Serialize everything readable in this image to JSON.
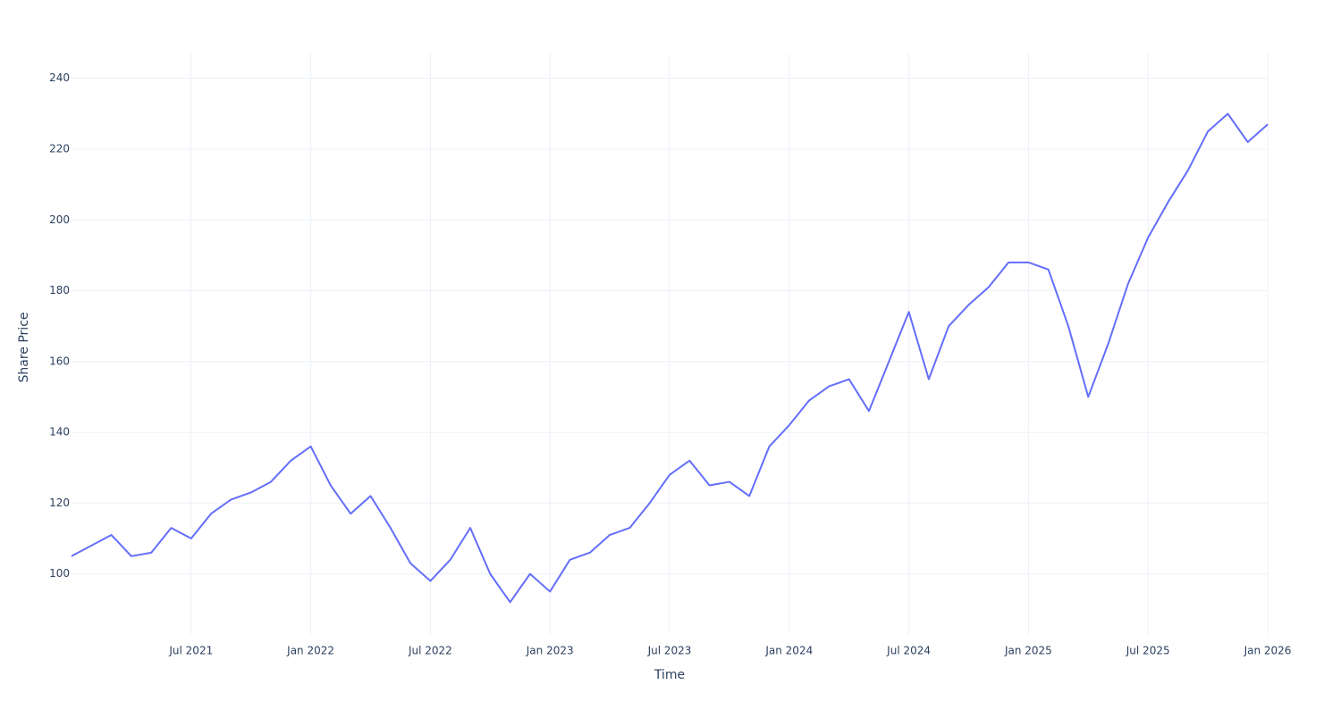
{
  "chart_data": {
    "type": "line",
    "x_label": "Time",
    "y_label": "Share Price",
    "x": [
      "2021-01",
      "2021-02",
      "2021-03",
      "2021-04",
      "2021-05",
      "2021-06",
      "2021-07",
      "2021-08",
      "2021-09",
      "2021-10",
      "2021-11",
      "2021-12",
      "2022-01",
      "2022-02",
      "2022-03",
      "2022-04",
      "2022-05",
      "2022-06",
      "2022-07",
      "2022-08",
      "2022-09",
      "2022-10",
      "2022-11",
      "2022-12",
      "2023-01",
      "2023-02",
      "2023-03",
      "2023-04",
      "2023-05",
      "2023-06",
      "2023-07",
      "2023-08",
      "2023-09",
      "2023-10",
      "2023-11",
      "2023-12",
      "2024-01",
      "2024-02",
      "2024-03",
      "2024-04",
      "2024-05",
      "2024-06",
      "2024-07",
      "2024-08",
      "2024-09",
      "2024-10",
      "2024-11",
      "2024-12",
      "2025-01",
      "2025-02",
      "2025-03",
      "2025-04",
      "2025-05",
      "2025-06",
      "2025-07",
      "2025-08",
      "2025-09",
      "2025-10",
      "2025-11",
      "2025-12",
      "2026-01"
    ],
    "series": [
      {
        "name": "Share Price",
        "color": "#636efa",
        "values": [
          105,
          108,
          111,
          105,
          106,
          113,
          110,
          117,
          121,
          123,
          126,
          132,
          136,
          125,
          117,
          122,
          113,
          103,
          98,
          104,
          113,
          100,
          92,
          100,
          95,
          104,
          106,
          111,
          113,
          120,
          128,
          132,
          125,
          126,
          122,
          136,
          142,
          149,
          153,
          155,
          146,
          160,
          174,
          155,
          170,
          176,
          181,
          188,
          188,
          186,
          170,
          150,
          165,
          182,
          195,
          205,
          214,
          225,
          230,
          222,
          227
        ]
      }
    ],
    "xlim": [
      "2021-01",
      "2026-01"
    ],
    "xticks": [
      {
        "value": "2021-07",
        "label": "Jul 2021"
      },
      {
        "value": "2022-01",
        "label": "Jan 2022"
      },
      {
        "value": "2022-07",
        "label": "Jul 2022"
      },
      {
        "value": "2023-01",
        "label": "Jan 2023"
      },
      {
        "value": "2023-07",
        "label": "Jul 2023"
      },
      {
        "value": "2024-01",
        "label": "Jan 2024"
      },
      {
        "value": "2024-07",
        "label": "Jul 2024"
      },
      {
        "value": "2025-01",
        "label": "Jan 2025"
      },
      {
        "value": "2025-07",
        "label": "Jul 2025"
      },
      {
        "value": "2026-01",
        "label": "Jan 2026"
      }
    ],
    "ylim": [
      83,
      247
    ],
    "yticks": [
      100,
      120,
      140,
      160,
      180,
      200,
      220,
      240
    ],
    "grid": true
  }
}
